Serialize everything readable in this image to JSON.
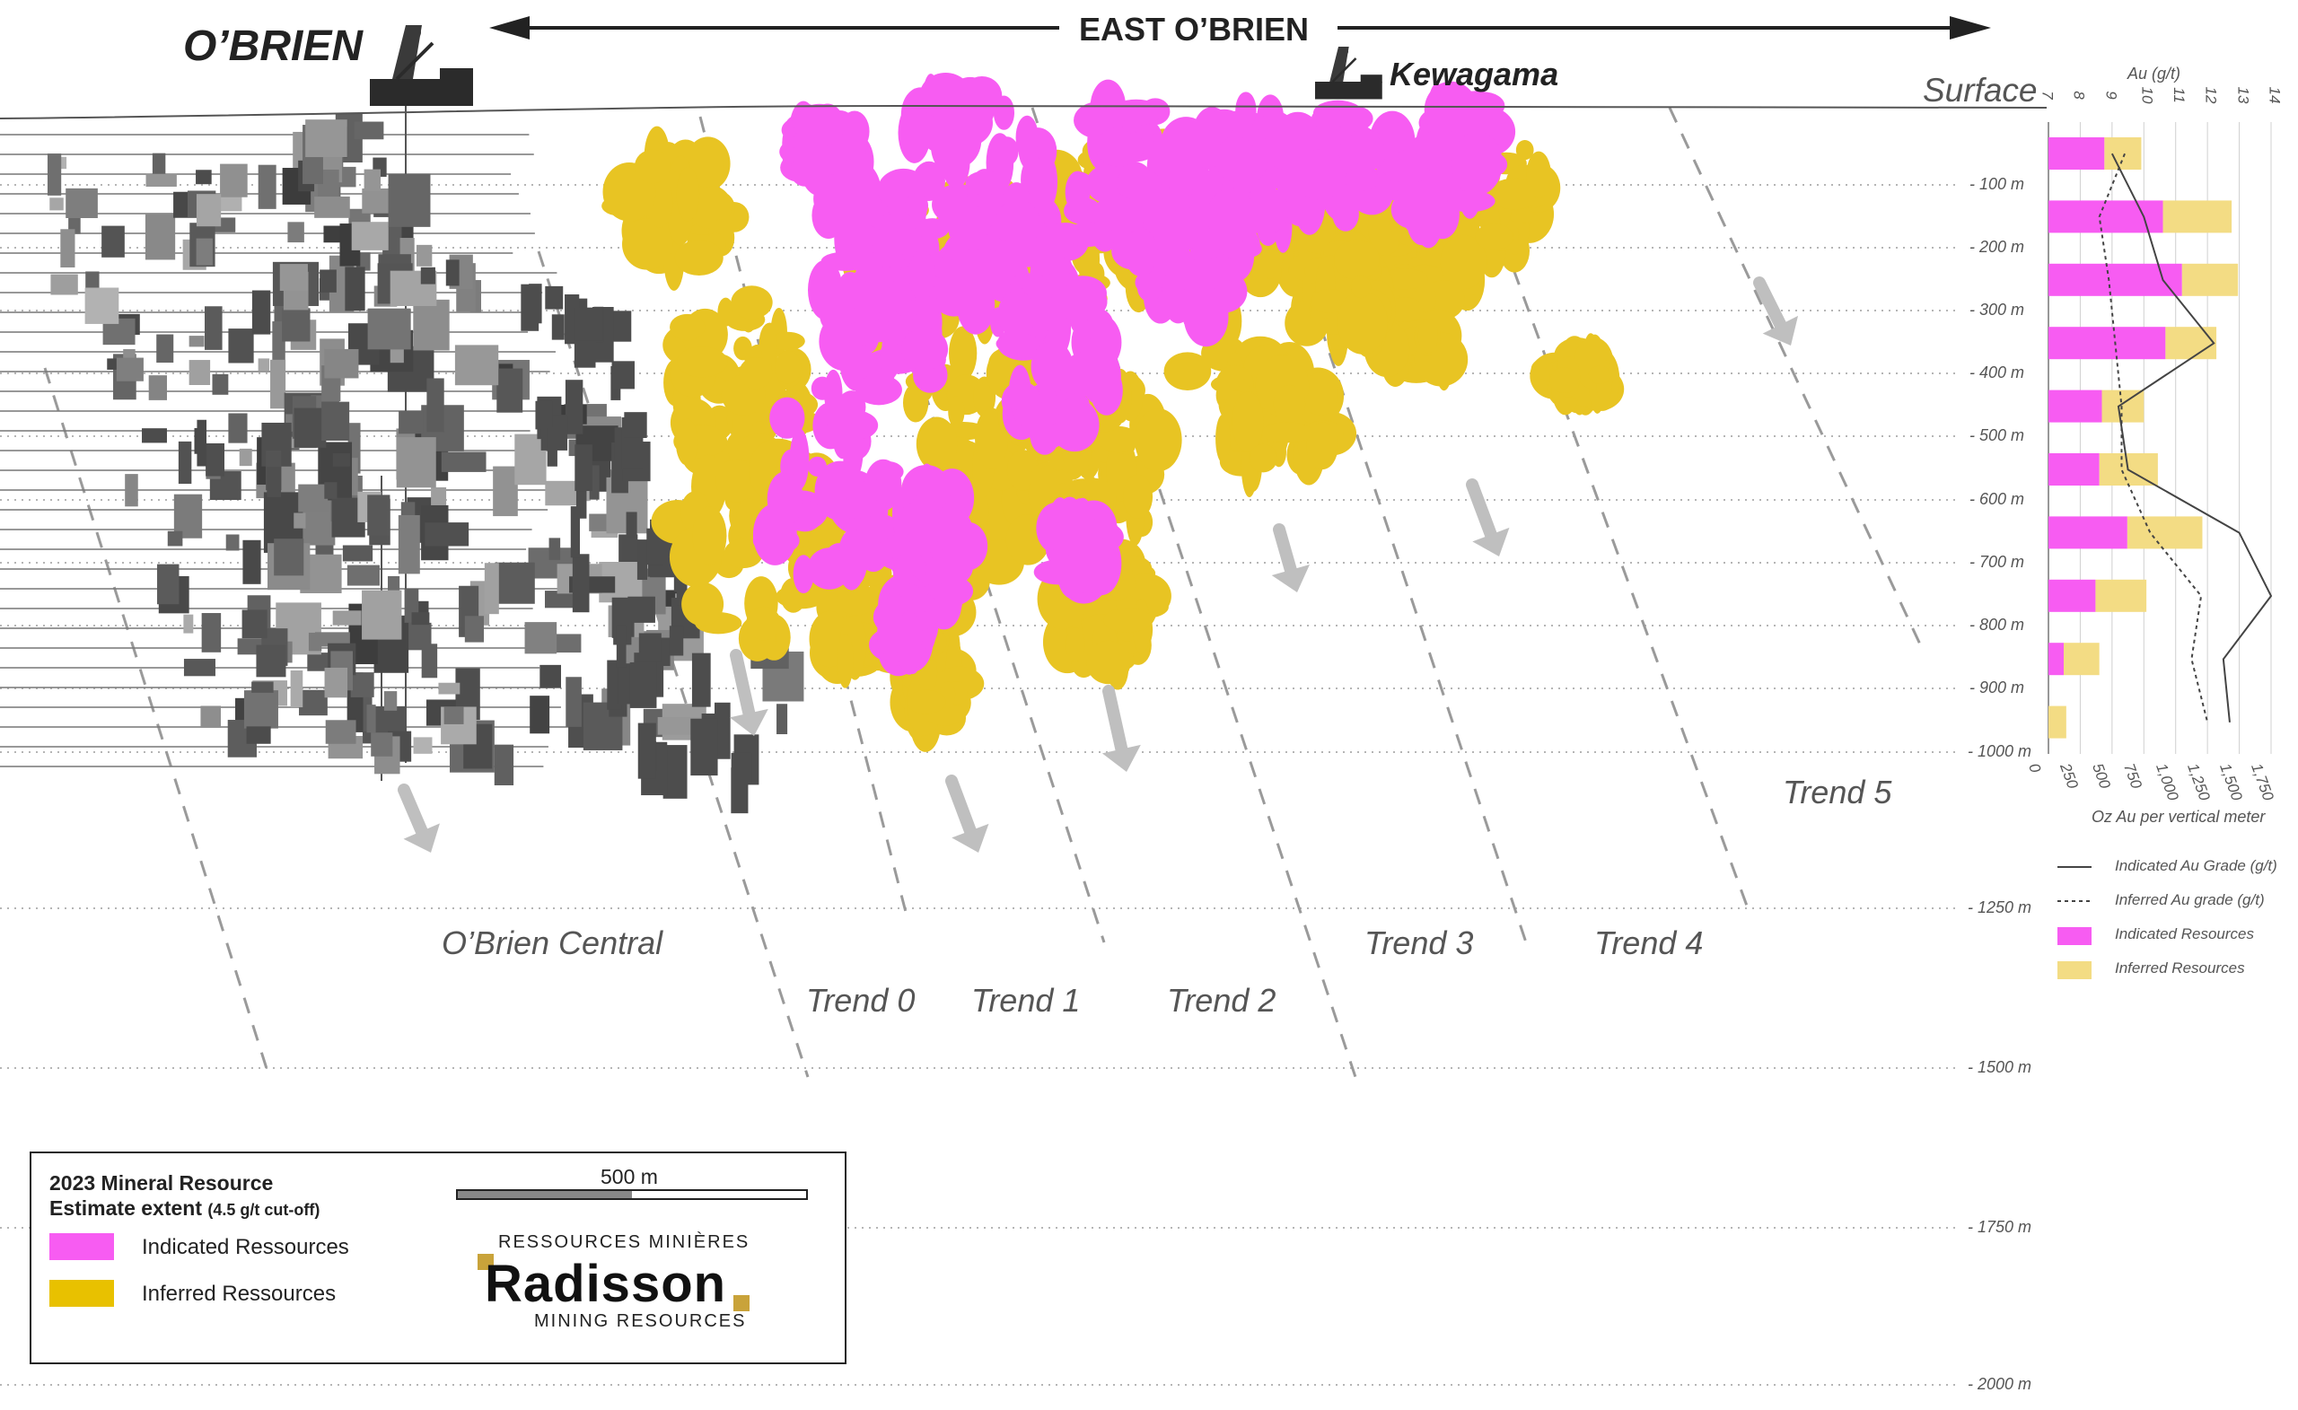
{
  "header": {
    "left_title": "O’BRIEN",
    "center_title": "EAST O’BRIEN",
    "kewagama_label": "Kewagama",
    "surface_label": "Surface"
  },
  "depth_labels": [
    "100 m",
    "200 m",
    "300 m",
    "400 m",
    "500 m",
    "600 m",
    "700 m",
    "800 m",
    "900 m",
    "1000 m",
    "1250 m",
    "1500 m",
    "1750 m",
    "2000 m"
  ],
  "trends": [
    "O’Brien Central",
    "Trend 0",
    "Trend 1",
    "Trend 2",
    "Trend 3",
    "Trend 4",
    "Trend 5"
  ],
  "colors": {
    "indicated": "#f75cf2",
    "inferred": "#e8c423",
    "inferred_chart": "#f3dc84",
    "indicated_chart": "#f75cf2",
    "workings": "#6b6b6b",
    "guide": "#9a9a9a"
  },
  "chart_data": {
    "type": "bar",
    "top_axis_label": "Au (g/t)",
    "top_axis_ticks": [
      "7",
      "8",
      "9",
      "10",
      "11",
      "12",
      "13",
      "14"
    ],
    "bottom_axis_label": "Oz Au per vertical meter",
    "bottom_axis_ticks": [
      "0",
      "250",
      "500",
      "750",
      "1,000",
      "1,250",
      "1,500",
      "1,750"
    ],
    "categories": [
      "100 m",
      "200 m",
      "300 m",
      "400 m",
      "500 m",
      "600 m",
      "700 m",
      "800 m",
      "900 m",
      "1000 m"
    ],
    "series": [
      {
        "name": "Indicated Resources",
        "values": [
          440,
          900,
          1050,
          920,
          420,
          400,
          620,
          370,
          120,
          0
        ]
      },
      {
        "name": "Inferred Resources",
        "values": [
          290,
          540,
          440,
          400,
          330,
          460,
          590,
          400,
          280,
          140
        ]
      },
      {
        "name": "Indicated Au Grade (g/t)",
        "values": [
          9.0,
          10.0,
          10.6,
          12.2,
          9.2,
          9.5,
          13.0,
          14.0,
          12.5,
          12.7
        ]
      },
      {
        "name": "Inferred Au grade (g/t)",
        "values": [
          9.4,
          8.6,
          8.9,
          9.1,
          9.3,
          9.3,
          10.2,
          11.8,
          11.5,
          12.0
        ]
      }
    ],
    "legend": [
      "Indicated Au Grade (g/t)",
      "Inferred Au grade (g/t)",
      "Indicated Resources",
      "Inferred Resources"
    ],
    "xlim_oz": [
      0,
      1750
    ],
    "xlim_grade": [
      7,
      14
    ]
  },
  "legend_box": {
    "title_line1": "2023 Mineral Resource",
    "title_line2": "Estimate extent",
    "cutoff": "(4.5  g/t cut-off)",
    "indicated_label": "Indicated Ressources",
    "inferred_label": "Inferred Ressources",
    "scale_label": "500 m"
  },
  "logo": {
    "top": "RESSOURCES MINIÈRES",
    "name": "Radisson",
    "bottom": "MINING RESOURCES"
  }
}
